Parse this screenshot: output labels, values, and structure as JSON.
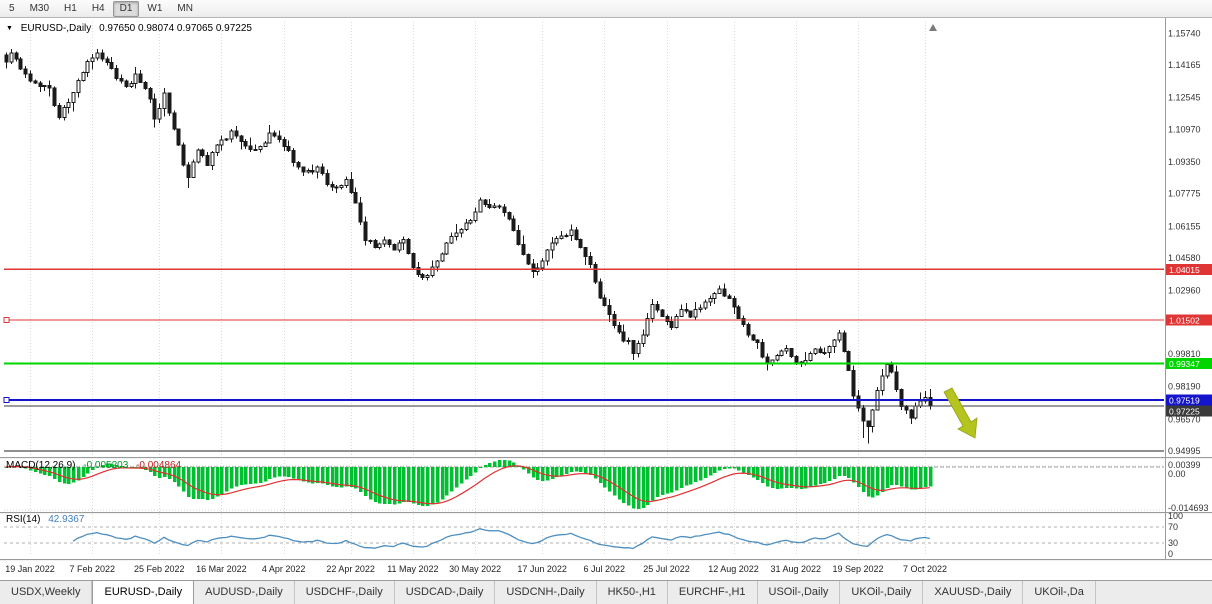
{
  "toolbar": {
    "timeframes": [
      "5",
      "M30",
      "H1",
      "H4",
      "D1",
      "W1",
      "MN"
    ],
    "active": "D1"
  },
  "icons": {
    "symbol_dropdown": "▼",
    "chart_shift_marker": "▲"
  },
  "tabs": {
    "items": [
      "USDX,Weekly",
      "EURUSD-,Daily",
      "AUDUSD-,Daily",
      "USDCHF-,Daily",
      "USDCAD-,Daily",
      "USDCNH-,Daily",
      "HK50-,H1",
      "EURCHF-,H1",
      "USOil-,Daily",
      "UKOil-,Daily",
      "XAUUSD-,Daily",
      "UKOil-,Da"
    ],
    "active_index": 1
  },
  "chart_data": {
    "type": "candlestick",
    "symbol": "EURUSD-",
    "timeframe": "Daily",
    "header": {
      "symbol": "EURUSD-,Daily",
      "ohlc": "0.97650 0.98074 0.97065 0.97225"
    },
    "last_candle": {
      "open": 0.9765,
      "high": 0.98074,
      "low": 0.97065,
      "close": 0.97225
    },
    "price_axis": {
      "range_top": 1.163,
      "range_bottom": 0.948,
      "labels": [
        "1.15740",
        "1.14165",
        "1.12545",
        "1.10970",
        "1.09350",
        "1.07775",
        "1.06155",
        "1.04580",
        "1.02960",
        "1.01385",
        "0.99810",
        "0.98190",
        "0.96570",
        "0.94995"
      ]
    },
    "date_axis": {
      "labels": [
        "19 Jan 2022",
        "7 Feb 2022",
        "25 Feb 2022",
        "16 Mar 2022",
        "4 Apr 2022",
        "22 Apr 2022",
        "11 May 2022",
        "30 May 2022",
        "17 Jun 2022",
        "6 Jul 2022",
        "25 Jul 2022",
        "12 Aug 2022",
        "31 Aug 2022",
        "19 Sep 2022",
        "7 Oct 2022"
      ],
      "day_index": [
        0,
        13,
        27,
        40,
        53,
        67,
        80,
        93,
        107,
        120,
        133,
        147,
        160,
        173,
        187
      ]
    },
    "day_range": [
      -5,
      188
    ],
    "candles_anchor_closes": [
      [
        -5,
        1.1445
      ],
      [
        -4,
        1.1478
      ],
      [
        -2,
        1.1408
      ],
      [
        0,
        1.1342
      ],
      [
        2,
        1.132
      ],
      [
        4,
        1.13
      ],
      [
        6,
        1.1152
      ],
      [
        8,
        1.1238
      ],
      [
        10,
        1.133
      ],
      [
        12,
        1.1442
      ],
      [
        14,
        1.1482
      ],
      [
        16,
        1.143
      ],
      [
        18,
        1.1362
      ],
      [
        20,
        1.131
      ],
      [
        22,
        1.136
      ],
      [
        24,
        1.1308
      ],
      [
        25,
        1.124
      ],
      [
        26,
        1.1152
      ],
      [
        28,
        1.1272
      ],
      [
        30,
        1.1108
      ],
      [
        32,
        1.0932
      ],
      [
        33,
        1.0858
      ],
      [
        35,
        1.099
      ],
      [
        37,
        1.0928
      ],
      [
        39,
        1.1012
      ],
      [
        42,
        1.1088
      ],
      [
        44,
        1.1038
      ],
      [
        46,
        1.0988
      ],
      [
        48,
        1.1002
      ],
      [
        50,
        1.1078
      ],
      [
        52,
        1.1048
      ],
      [
        54,
        1.0982
      ],
      [
        56,
        1.0908
      ],
      [
        58,
        1.0882
      ],
      [
        60,
        1.0912
      ],
      [
        62,
        1.0822
      ],
      [
        64,
        1.0798
      ],
      [
        66,
        1.0842
      ],
      [
        68,
        1.0722
      ],
      [
        70,
        1.0558
      ],
      [
        72,
        1.0518
      ],
      [
        74,
        1.0542
      ],
      [
        76,
        1.0508
      ],
      [
        78,
        1.0558
      ],
      [
        80,
        1.0412
      ],
      [
        82,
        1.0358
      ],
      [
        84,
        1.0408
      ],
      [
        86,
        1.0472
      ],
      [
        88,
        1.0568
      ],
      [
        90,
        1.0588
      ],
      [
        92,
        1.0652
      ],
      [
        94,
        1.0738
      ],
      [
        96,
        1.0698
      ],
      [
        98,
        1.0722
      ],
      [
        100,
        1.0662
      ],
      [
        102,
        1.0522
      ],
      [
        104,
        1.0438
      ],
      [
        105,
        1.0382
      ],
      [
        107,
        1.0448
      ],
      [
        109,
        1.0542
      ],
      [
        111,
        1.0568
      ],
      [
        113,
        1.0588
      ],
      [
        115,
        1.0512
      ],
      [
        117,
        1.0428
      ],
      [
        119,
        1.0268
      ],
      [
        121,
        1.0178
      ],
      [
        123,
        1.0078
      ],
      [
        125,
        1.0038
      ],
      [
        126,
        0.9992
      ],
      [
        128,
        1.0082
      ],
      [
        130,
        1.0228
      ],
      [
        132,
        1.0172
      ],
      [
        134,
        1.0118
      ],
      [
        136,
        1.0198
      ],
      [
        138,
        1.0168
      ],
      [
        140,
        1.0218
      ],
      [
        142,
        1.0258
      ],
      [
        144,
        1.0302
      ],
      [
        146,
        1.0258
      ],
      [
        148,
        1.0168
      ],
      [
        150,
        1.0088
      ],
      [
        152,
        1.0028
      ],
      [
        154,
        0.9928
      ],
      [
        156,
        0.9968
      ],
      [
        158,
        1.0008
      ],
      [
        160,
        0.9942
      ],
      [
        162,
        0.9938
      ],
      [
        164,
        1.0008
      ],
      [
        166,
        0.9992
      ],
      [
        168,
        1.0062
      ],
      [
        169,
        1.0092
      ],
      [
        170,
        0.9988
      ],
      [
        171,
        0.9902
      ],
      [
        172,
        0.9762
      ],
      [
        173,
        0.9702
      ],
      [
        174,
        0.9642
      ],
      [
        175,
        0.9632
      ],
      [
        176,
        0.9702
      ],
      [
        177,
        0.9792
      ],
      [
        178,
        0.9872
      ],
      [
        179,
        0.9922
      ],
      [
        180,
        0.9882
      ],
      [
        181,
        0.9802
      ],
      [
        182,
        0.9732
      ],
      [
        183,
        0.9692
      ],
      [
        184,
        0.9662
      ],
      [
        185,
        0.9722
      ],
      [
        186,
        0.9762
      ],
      [
        187,
        0.9712
      ],
      [
        188,
        0.97225
      ]
    ],
    "wick_extremes": [
      [
        14,
        "high",
        1.1495
      ],
      [
        26,
        "low",
        1.1106
      ],
      [
        33,
        "low",
        1.0806
      ],
      [
        82,
        "low",
        1.0349
      ],
      [
        105,
        "low",
        1.0359
      ],
      [
        126,
        "low",
        0.9952
      ],
      [
        154,
        "low",
        0.99
      ],
      [
        174,
        "low",
        0.9565
      ],
      [
        175,
        "low",
        0.9536
      ],
      [
        184,
        "low",
        0.9633
      ]
    ],
    "candle_colors": {
      "bull_fill": "#ffffff",
      "bear_fill": "#1a1a1a",
      "outline": "#1a1a1a"
    },
    "hlines": [
      {
        "price": 1.04015,
        "label": "1.04015",
        "color": "#e03535",
        "width": 1.4,
        "selected": false
      },
      {
        "price": 1.01502,
        "label": "1.01502",
        "color": "#e03535",
        "width": 1.4,
        "selected": true
      },
      {
        "price": 0.99347,
        "label": "0.99347",
        "color": "#00d500",
        "width": 2,
        "selected": false
      },
      {
        "price": 0.97519,
        "label": "0.97519",
        "color": "#1414cc",
        "width": 2,
        "selected": true
      },
      {
        "price": 0.97225,
        "label": "0.97225",
        "color": "#3a3a3a",
        "width": 1,
        "selected": false,
        "role": "current-price"
      },
      {
        "price": 0.95,
        "label": null,
        "color": "#222222",
        "width": 1.3,
        "selected": false
      }
    ],
    "indicators": {
      "macd": {
        "name": "MACD(12,26,9)",
        "values": [
          "-0.005203",
          "-0.004864"
        ],
        "scale_labels": [
          "0.00399",
          "0.00",
          "-0.014693"
        ],
        "histogram_color": "#00bf30",
        "signal_color": "#e03030"
      },
      "rsi": {
        "name": "RSI(14)",
        "value": "42.9367",
        "levels": [
          "100",
          "70",
          "30",
          "0"
        ],
        "line_color": "#4f8fc0"
      }
    },
    "annotations": {
      "arrow": {
        "shape": "down-right-arrow",
        "color": "#b5c41f",
        "stroke": "#93a014"
      }
    }
  }
}
